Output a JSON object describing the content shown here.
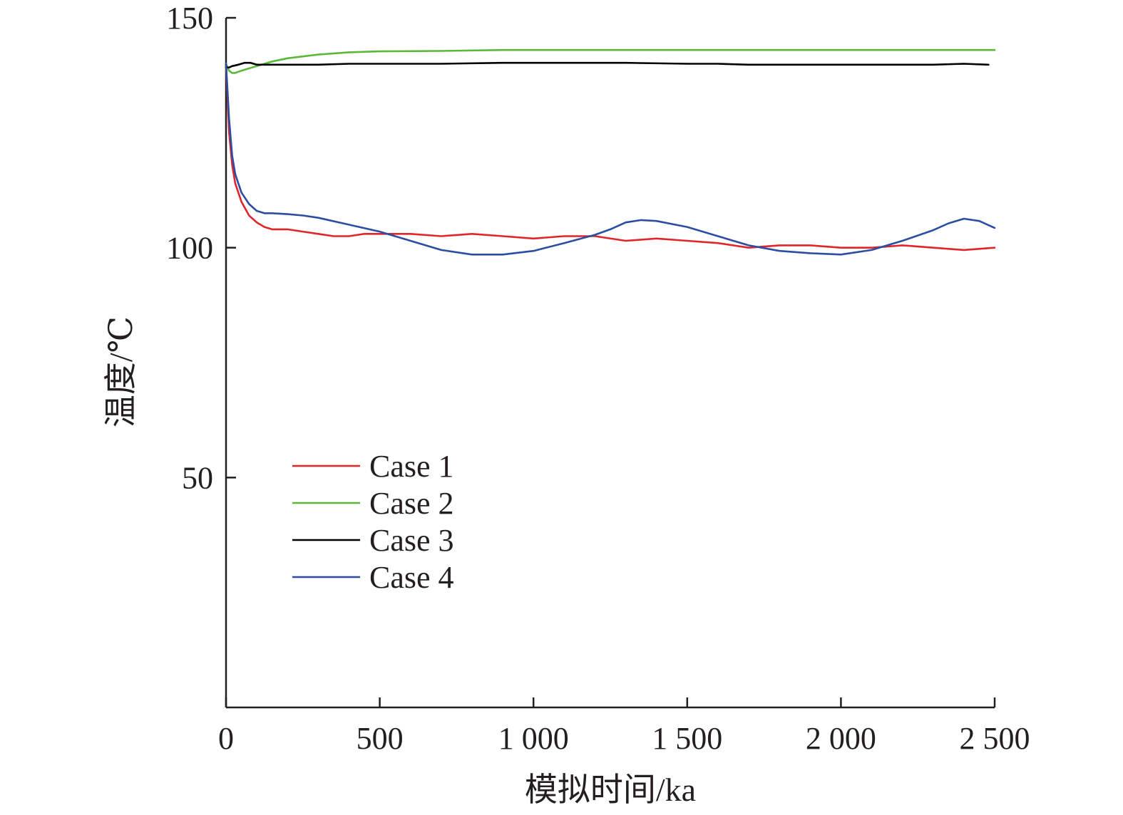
{
  "chart_data": {
    "type": "line",
    "title": "",
    "xlabel": "模拟时间/ka",
    "ylabel": "温度/℃",
    "xlim": [
      0,
      2500
    ],
    "ylim": [
      0,
      150
    ],
    "xticks": [
      0,
      500,
      1000,
      1500,
      2000,
      2500
    ],
    "xtick_labels": [
      "0",
      "500",
      "1 000",
      "1 500",
      "2 000",
      "2 500"
    ],
    "yticks": [
      50,
      100,
      150
    ],
    "ytick_labels": [
      "50",
      "100",
      "150"
    ],
    "grid": false,
    "legend_position": "lower-left",
    "series": [
      {
        "name": "Case 1",
        "color": "#e0262b",
        "x": [
          0,
          10,
          20,
          30,
          50,
          75,
          100,
          125,
          150,
          200,
          250,
          300,
          350,
          400,
          450,
          500,
          600,
          700,
          800,
          900,
          1000,
          1100,
          1200,
          1300,
          1400,
          1500,
          1600,
          1700,
          1800,
          1900,
          2000,
          2100,
          2200,
          2300,
          2400,
          2500
        ],
        "y": [
          140,
          125,
          118,
          114,
          110,
          107,
          105.5,
          104.5,
          104,
          104,
          103.5,
          103,
          102.5,
          102.5,
          103,
          103,
          103,
          102.5,
          103,
          102.5,
          102,
          102.5,
          102.5,
          101.5,
          102,
          101.5,
          101,
          100,
          100.5,
          100.5,
          100,
          100,
          100.5,
          100,
          99.5,
          100
        ]
      },
      {
        "name": "Case 2",
        "color": "#5cb83a",
        "x": [
          0,
          10,
          20,
          30,
          50,
          75,
          100,
          150,
          200,
          250,
          300,
          400,
          500,
          700,
          900,
          1200,
          1500,
          2000,
          2500
        ],
        "y": [
          140,
          138.5,
          138,
          138,
          138.5,
          139,
          139.5,
          140.5,
          141.2,
          141.6,
          142,
          142.5,
          142.7,
          142.8,
          143,
          143,
          143,
          143,
          143
        ]
      },
      {
        "name": "Case 3",
        "color": "#000000",
        "x": [
          0,
          10,
          20,
          40,
          60,
          80,
          100,
          150,
          200,
          300,
          400,
          500,
          700,
          900,
          1100,
          1300,
          1500,
          1600,
          1700,
          1900,
          2100,
          2300,
          2400,
          2480
        ],
        "y": [
          139.2,
          139.2,
          139.5,
          139.8,
          140.2,
          140.2,
          139.8,
          139.8,
          139.8,
          139.8,
          140,
          140,
          140,
          140.2,
          140.2,
          140.2,
          140,
          140,
          139.8,
          139.8,
          139.8,
          139.8,
          140,
          139.8
        ]
      },
      {
        "name": "Case 4",
        "color": "#2c4da1",
        "x": [
          0,
          10,
          20,
          30,
          50,
          75,
          100,
          125,
          150,
          200,
          250,
          300,
          400,
          500,
          600,
          700,
          800,
          900,
          1000,
          1100,
          1200,
          1250,
          1300,
          1350,
          1400,
          1500,
          1600,
          1700,
          1800,
          1900,
          2000,
          2100,
          2200,
          2300,
          2350,
          2400,
          2450,
          2500
        ],
        "y": [
          140,
          128,
          120,
          116,
          112,
          109.5,
          108,
          107.5,
          107.5,
          107.3,
          107,
          106.5,
          105,
          103.5,
          101.5,
          99.5,
          98.5,
          98.5,
          99.3,
          101,
          102.8,
          104,
          105.5,
          106,
          105.8,
          104.5,
          102.5,
          100.5,
          99.3,
          98.8,
          98.5,
          99.5,
          101.5,
          103.8,
          105.3,
          106.3,
          105.8,
          104.3
        ]
      }
    ]
  }
}
